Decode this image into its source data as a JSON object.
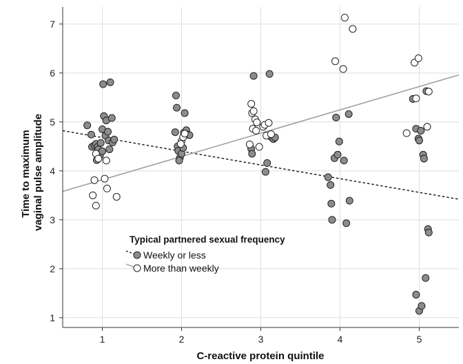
{
  "chart_data": {
    "type": "scatter",
    "xlabel": "C-reactive protein quintile",
    "ylabel_lines": [
      "Time to maximum",
      "vaginal pulse amplitude"
    ],
    "x_ticks": [
      "1",
      "2",
      "3",
      "4",
      "5"
    ],
    "y_ticks": [
      "1",
      "2",
      "3",
      "4",
      "5",
      "6",
      "7"
    ],
    "xlim": [
      0.5,
      5.5
    ],
    "ylim": [
      0.8,
      7.35
    ],
    "grid": true,
    "legend": {
      "title": "Typical partnered sexual frequency",
      "position": "bottom-left",
      "items": [
        {
          "label": "Weekly or less",
          "marker": "filled-circle",
          "line": "dashed"
        },
        {
          "label": "More than weekly",
          "marker": "open-circle",
          "line": "solid"
        }
      ]
    },
    "series": [
      {
        "name": "Weekly or less",
        "fill": "#8c8c8c",
        "stroke": "#222222",
        "fit_line": {
          "style": "dashed",
          "color": "#111111",
          "x": [
            0.5,
            5.5
          ],
          "y": [
            4.82,
            3.42
          ]
        },
        "points": [
          [
            0.81,
            4.93
          ],
          [
            0.86,
            4.74
          ],
          [
            0.87,
            4.49
          ],
          [
            0.9,
            4.52
          ],
          [
            0.92,
            4.55
          ],
          [
            0.94,
            4.49
          ],
          [
            0.95,
            4.44
          ],
          [
            0.93,
            4.22
          ],
          [
            0.97,
            4.31
          ],
          [
            1.0,
            4.85
          ],
          [
            1.01,
            5.77
          ],
          [
            1.02,
            5.12
          ],
          [
            1.04,
            4.72
          ],
          [
            1.05,
            5.03
          ],
          [
            1.07,
            4.8
          ],
          [
            1.08,
            4.62
          ],
          [
            1.09,
            4.44
          ],
          [
            1.1,
            5.81
          ],
          [
            1.12,
            5.08
          ],
          [
            1.13,
            4.58
          ],
          [
            1.15,
            4.64
          ],
          [
            0.98,
            4.57
          ],
          [
            1.0,
            4.4
          ],
          [
            1.93,
            5.54
          ],
          [
            1.94,
            5.29
          ],
          [
            1.92,
            4.79
          ],
          [
            1.95,
            4.5
          ],
          [
            1.96,
            4.41
          ],
          [
            1.98,
            4.27
          ],
          [
            1.97,
            4.21
          ],
          [
            2.0,
            4.35
          ],
          [
            2.02,
            4.47
          ],
          [
            2.03,
            4.78
          ],
          [
            2.04,
            5.18
          ],
          [
            2.06,
            4.83
          ],
          [
            2.08,
            4.74
          ],
          [
            2.1,
            4.73
          ],
          [
            2.91,
            5.94
          ],
          [
            2.88,
            4.45
          ],
          [
            2.89,
            4.35
          ],
          [
            3.06,
            3.98
          ],
          [
            3.08,
            4.16
          ],
          [
            3.11,
            5.98
          ],
          [
            3.12,
            4.71
          ],
          [
            3.14,
            4.68
          ],
          [
            3.16,
            4.65
          ],
          [
            3.18,
            4.68
          ],
          [
            3.85,
            3.87
          ],
          [
            3.88,
            3.71
          ],
          [
            3.89,
            3.33
          ],
          [
            3.9,
            3.0
          ],
          [
            3.93,
            4.26
          ],
          [
            3.95,
            5.09
          ],
          [
            3.97,
            4.33
          ],
          [
            3.99,
            4.6
          ],
          [
            4.05,
            4.21
          ],
          [
            4.08,
            2.93
          ],
          [
            4.11,
            5.16
          ],
          [
            4.12,
            3.39
          ],
          [
            4.92,
            5.47
          ],
          [
            4.96,
            4.86
          ],
          [
            4.99,
            4.66
          ],
          [
            5.0,
            4.62
          ],
          [
            5.02,
            4.82
          ],
          [
            5.05,
            4.33
          ],
          [
            5.06,
            4.25
          ],
          [
            5.09,
            5.63
          ],
          [
            5.11,
            2.81
          ],
          [
            5.12,
            2.74
          ],
          [
            5.08,
            1.81
          ],
          [
            4.96,
            1.47
          ],
          [
            5.0,
            1.14
          ],
          [
            5.03,
            1.24
          ]
        ]
      },
      {
        "name": "More than weekly",
        "fill": "#ffffff",
        "stroke": "#222222",
        "fit_line": {
          "style": "solid",
          "color": "#9a9a9a",
          "x": [
            0.5,
            5.5
          ],
          "y": [
            3.58,
            5.96
          ]
        },
        "points": [
          [
            0.92,
            4.35
          ],
          [
            0.95,
            4.25
          ],
          [
            1.05,
            4.21
          ],
          [
            0.9,
            3.81
          ],
          [
            1.03,
            3.84
          ],
          [
            0.88,
            3.5
          ],
          [
            1.06,
            3.64
          ],
          [
            0.92,
            3.29
          ],
          [
            1.18,
            3.47
          ],
          [
            2.0,
            4.61
          ],
          [
            2.02,
            4.69
          ],
          [
            2.04,
            4.76
          ],
          [
            1.99,
            4.55
          ],
          [
            2.88,
            5.37
          ],
          [
            2.89,
            5.18
          ],
          [
            2.91,
            5.22
          ],
          [
            2.93,
            5.05
          ],
          [
            2.95,
            4.99
          ],
          [
            2.9,
            4.86
          ],
          [
            2.94,
            4.82
          ],
          [
            2.86,
            4.54
          ],
          [
            2.98,
            4.49
          ],
          [
            3.03,
            4.9
          ],
          [
            3.05,
            4.94
          ],
          [
            3.07,
            4.72
          ],
          [
            3.1,
            4.98
          ],
          [
            3.13,
            4.75
          ],
          [
            3.94,
            6.24
          ],
          [
            4.04,
            6.08
          ],
          [
            4.06,
            7.13
          ],
          [
            4.16,
            6.9
          ],
          [
            4.84,
            4.77
          ],
          [
            4.94,
            6.21
          ],
          [
            4.99,
            6.3
          ],
          [
            4.96,
            5.48
          ],
          [
            5.12,
            5.62
          ],
          [
            5.1,
            4.9
          ]
        ]
      }
    ]
  }
}
